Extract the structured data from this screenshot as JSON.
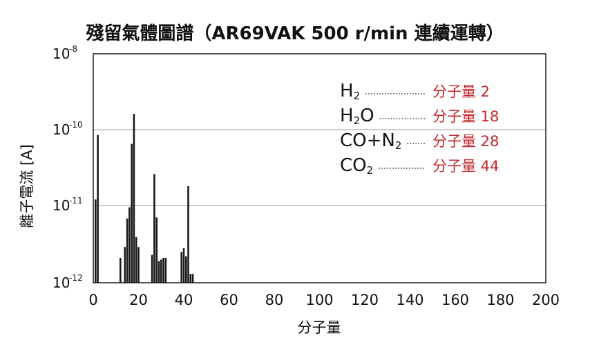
{
  "title": "殘留氣體圖譜（AR69VAK 500 r/min 連續運轉）",
  "chart_data": {
    "type": "bar",
    "title": "殘留氣體圖譜（AR69VAK 500 r/min 連續運轉）",
    "xlabel": "分子量",
    "ylabel": "離子電流 [A]",
    "xlim": [
      0,
      200
    ],
    "ylim_log10": [
      -12,
      -8
    ],
    "y_scale": "log",
    "xticks": [
      "0",
      "20",
      "40",
      "60",
      "80",
      "100",
      "120",
      "140",
      "160",
      "180",
      "200"
    ],
    "yticks": [
      {
        "base": "10",
        "exp": "-8",
        "log": -8
      },
      {
        "base": "10",
        "exp": "-10",
        "log": -10
      },
      {
        "base": "10",
        "exp": "-11",
        "log": -11
      },
      {
        "base": "10",
        "exp": "-12",
        "log": -12
      }
    ],
    "grid_lines_log": [
      -10,
      -11
    ],
    "x": [
      1,
      2,
      12,
      14,
      15,
      16,
      17,
      18,
      19,
      20,
      26,
      27,
      28,
      29,
      30,
      31,
      32,
      39,
      40,
      41,
      42,
      43,
      44
    ],
    "values": [
      1.2e-11,
      8.5e-11,
      2.1e-12,
      2.9e-12,
      6.8e-12,
      9.5e-12,
      6.5e-11,
      2.6e-10,
      3.9e-12,
      2.9e-12,
      2.3e-12,
      2.6e-11,
      7e-12,
      1.9e-12,
      2e-12,
      2.1e-12,
      2.1e-12,
      2.5e-12,
      2.8e-12,
      2.2e-12,
      1.8e-11,
      1.3e-12,
      1.3e-12
    ],
    "legend": [
      {
        "formula": "H",
        "sub": "2",
        "suffix": "",
        "label": "分子量 2"
      },
      {
        "formula": "H",
        "sub": "2",
        "suffix": "O",
        "label": "分子量 18"
      },
      {
        "formula": "CO+N",
        "sub": "2",
        "suffix": "",
        "label": "分子量 28"
      },
      {
        "formula": "CO",
        "sub": "2",
        "suffix": "",
        "label": "分子量 44"
      }
    ]
  }
}
